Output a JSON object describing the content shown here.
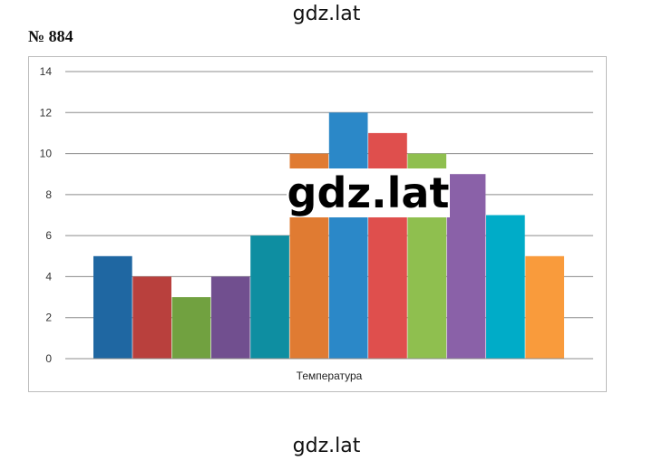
{
  "watermark": {
    "top": "gdz.lat",
    "center": "gdz.lat",
    "bottom": "gdz.lat"
  },
  "problem_number": "№ 884",
  "chart_data": {
    "type": "bar",
    "title": "",
    "xlabel": "Температура",
    "ylabel": "",
    "ylim": [
      0,
      14
    ],
    "yticks": [
      0,
      2,
      4,
      6,
      8,
      10,
      12,
      14
    ],
    "grid": true,
    "values": [
      5,
      4,
      3,
      4,
      6,
      10,
      12,
      11,
      10,
      9,
      7,
      5
    ],
    "colors": [
      "#1f67a2",
      "#b9403d",
      "#71a140",
      "#714f8f",
      "#0e8ea1",
      "#e07b32",
      "#2b88c8",
      "#df4f4d",
      "#8fbf4f",
      "#8a61a8",
      "#00acc8",
      "#f99b3c"
    ]
  }
}
